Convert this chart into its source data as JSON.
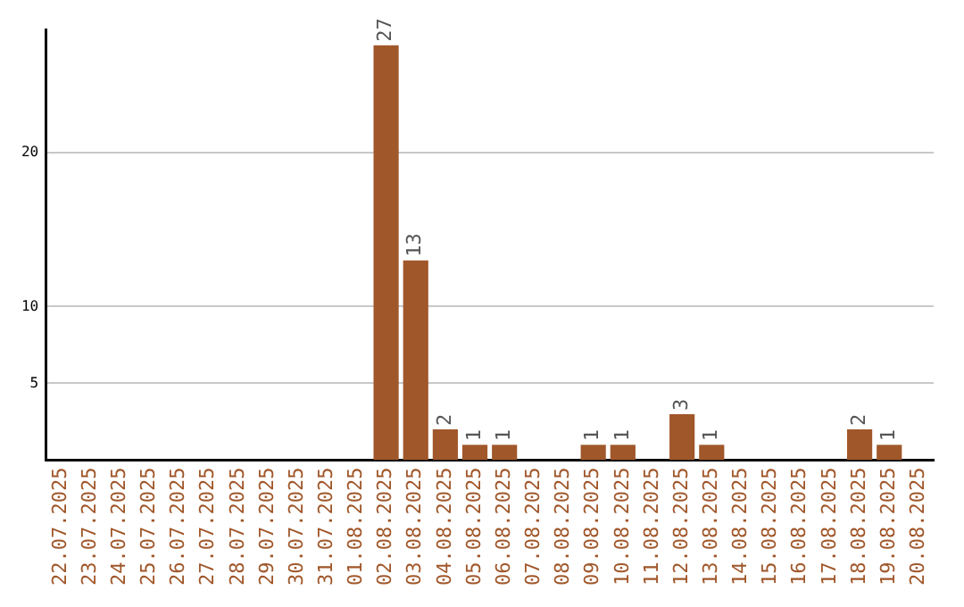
{
  "chart_data": {
    "type": "bar",
    "categories": [
      "22.07.2025",
      "23.07.2025",
      "24.07.2025",
      "25.07.2025",
      "26.07.2025",
      "27.07.2025",
      "28.07.2025",
      "29.07.2025",
      "30.07.2025",
      "31.07.2025",
      "01.08.2025",
      "02.08.2025",
      "03.08.2025",
      "04.08.2025",
      "05.08.2025",
      "06.08.2025",
      "07.08.2025",
      "08.08.2025",
      "09.08.2025",
      "10.08.2025",
      "11.08.2025",
      "12.08.2025",
      "13.08.2025",
      "14.08.2025",
      "15.08.2025",
      "16.08.2025",
      "17.08.2025",
      "18.08.2025",
      "19.08.2025",
      "20.08.2025"
    ],
    "values": [
      0,
      0,
      0,
      0,
      0,
      0,
      0,
      0,
      0,
      0,
      0,
      27,
      13,
      2,
      1,
      1,
      0,
      0,
      1,
      1,
      0,
      3,
      1,
      0,
      0,
      0,
      0,
      2,
      1,
      0
    ],
    "value_labels": [
      null,
      null,
      null,
      null,
      null,
      null,
      null,
      null,
      null,
      null,
      null,
      "27",
      "13",
      "2",
      "1",
      "1",
      null,
      null,
      "1",
      "1",
      null,
      "3",
      "1",
      null,
      null,
      null,
      null,
      "2",
      "1",
      null
    ],
    "color": "#a0572a",
    "ylim": [
      0,
      28
    ],
    "yticks": [
      5,
      10,
      20
    ],
    "grid": "y",
    "legend": false
  }
}
